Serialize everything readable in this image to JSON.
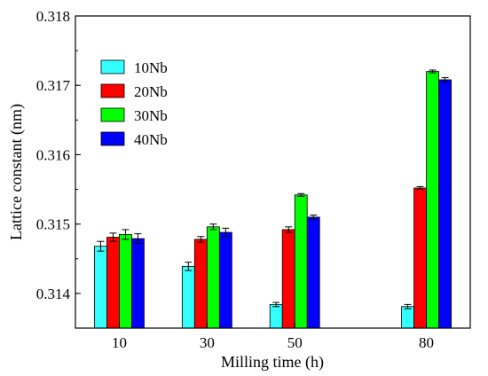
{
  "chart_data": {
    "type": "bar",
    "xlabel": "Milling time (h)",
    "ylabel": "Lattice constant (nm)",
    "ylim": [
      0.3135,
      0.318
    ],
    "yticks": [
      "0.314",
      "0.315",
      "0.316",
      "0.317",
      "0.318"
    ],
    "x": [
      10,
      30,
      50,
      80
    ],
    "categories": [
      "10",
      "30",
      "50",
      "80"
    ],
    "xlim": [
      0,
      90
    ],
    "legend_position": "top-left",
    "series": [
      {
        "name": "10Nb",
        "color": "#33ffff",
        "values": [
          0.31468,
          0.31439,
          0.31384,
          0.31381
        ],
        "errors": [
          7e-05,
          6e-05,
          3e-05,
          3e-05
        ]
      },
      {
        "name": "20Nb",
        "color": "#ff0000",
        "values": [
          0.31481,
          0.31478,
          0.31492,
          0.31552
        ],
        "errors": [
          6e-05,
          4e-05,
          4e-05,
          2e-05
        ]
      },
      {
        "name": "30Nb",
        "color": "#00ff00",
        "values": [
          0.31485,
          0.31496,
          0.31542,
          0.3172
        ],
        "errors": [
          7e-05,
          4e-05,
          2e-05,
          2e-05
        ]
      },
      {
        "name": "40Nb",
        "color": "#0000ff",
        "values": [
          0.31479,
          0.31488,
          0.3151,
          0.31708
        ],
        "errors": [
          7e-05,
          6e-05,
          3e-05,
          3e-05
        ]
      }
    ]
  }
}
